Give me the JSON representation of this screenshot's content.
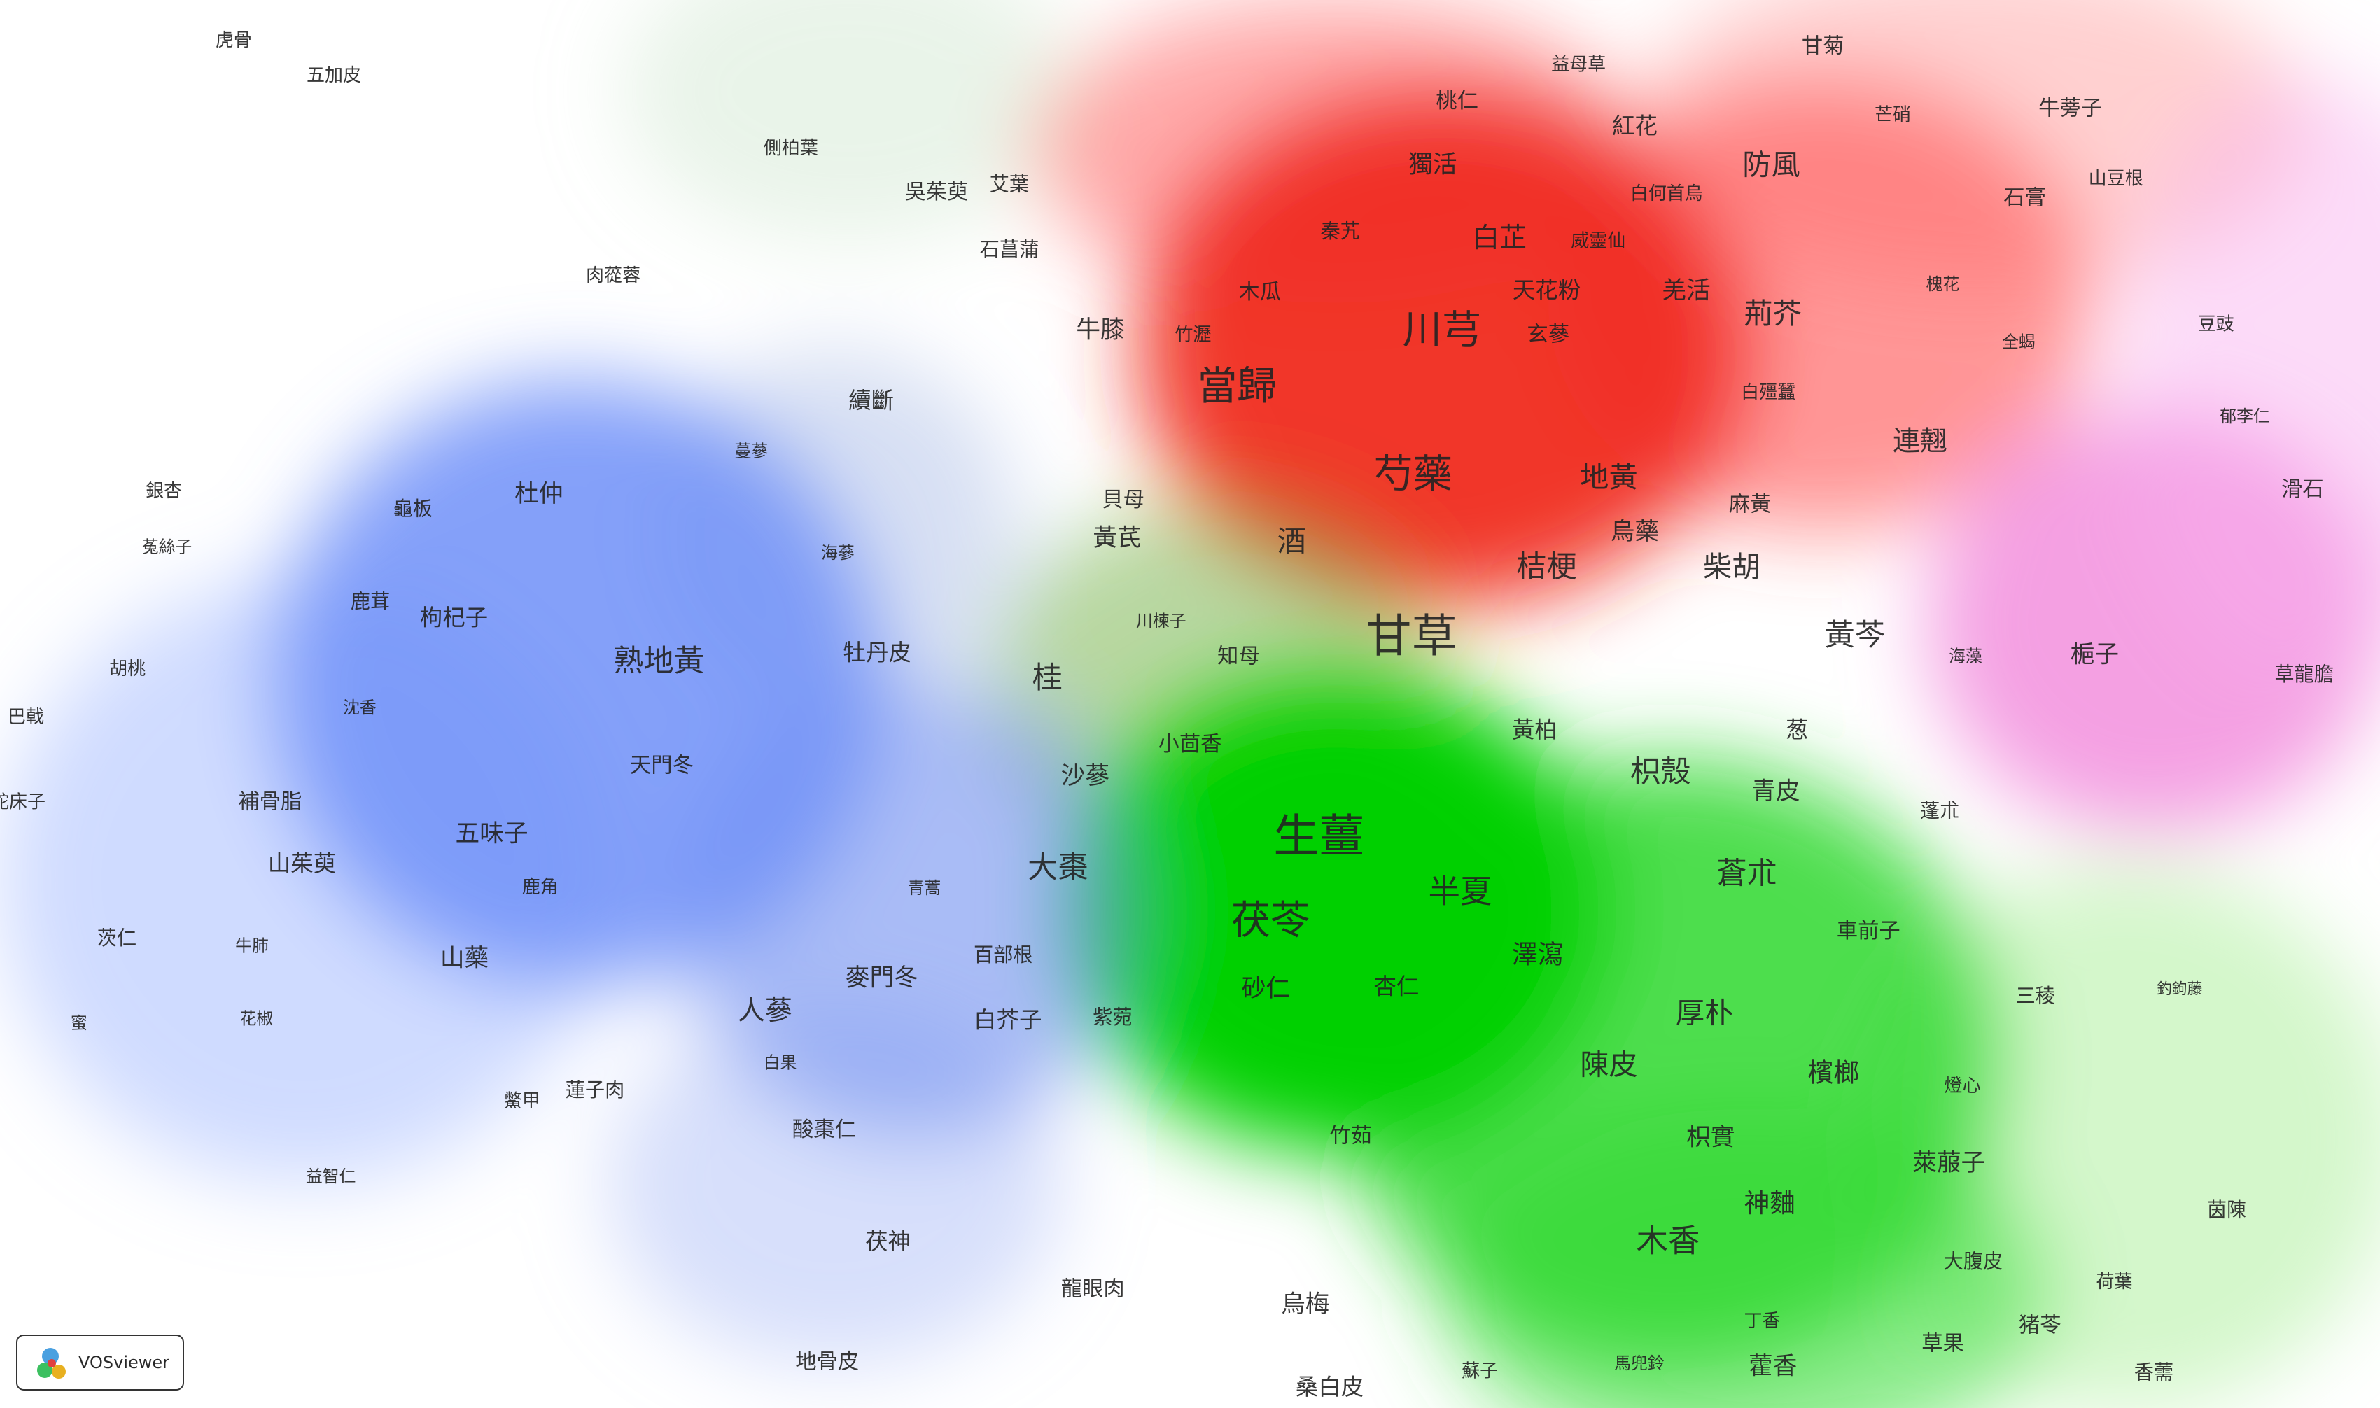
{
  "terms": [
    "虎骨",
    "五加皮",
    "側柏葉",
    "吳茱萸",
    "艾葉",
    "石菖蒲",
    "肉蓯蓉",
    "益母草",
    "甘菊",
    "桃仁",
    "紅花",
    "芒硝",
    "牛蒡子",
    "獨活",
    "白何首烏",
    "防風",
    "山豆根",
    "石膏",
    "秦艽",
    "白芷",
    "威靈仙",
    "木瓜",
    "天花粉",
    "羌活",
    "槐花",
    "牛膝",
    "竹瀝",
    "川芎",
    "玄蔘",
    "荊芥",
    "全蝎",
    "豆豉",
    "續斷",
    "當歸",
    "白殭蠶",
    "連翹",
    "郁李仁",
    "蔓蔘",
    "銀杏",
    "龜板",
    "杜仲",
    "貝母",
    "芍藥",
    "地黃",
    "麻黃",
    "滑石",
    "菟絲子",
    "海蔘",
    "黃芪",
    "酒",
    "烏藥",
    "桔梗",
    "柴胡",
    "鹿茸",
    "枸杞子",
    "川楝子",
    "甘草",
    "黃芩",
    "海藻",
    "梔子",
    "胡桃",
    "熟地黃",
    "牡丹皮",
    "桂",
    "知母",
    "草龍膽",
    "巴戟",
    "沈香",
    "黃柏",
    "葱",
    "枳殼",
    "天門冬",
    "小茴香",
    "沙蔘",
    "青皮",
    "蛇床子",
    "補骨脂",
    "蓬朮",
    "五味子",
    "生薑",
    "山茱萸",
    "鹿角",
    "青蒿",
    "大棗",
    "半夏",
    "蒼朮",
    "車前子",
    "茯苓",
    "澤瀉",
    "百部根",
    "茨仁",
    "牛肺",
    "山藥",
    "麥門冬",
    "砂仁",
    "杏仁",
    "白芥子",
    "紫菀",
    "三稜",
    "釣鉤藤",
    "人蔘",
    "厚朴",
    "蜜",
    "花椒",
    "白果",
    "陳皮",
    "檳榔",
    "燈心",
    "鱉甲",
    "蓮子肉",
    "酸棗仁",
    "竹茹",
    "枳實",
    "萊菔子",
    "益智仁",
    "神麯",
    "茵陳",
    "木香",
    "茯神",
    "大腹皮",
    "荷葉",
    "龍眼肉",
    "烏梅",
    "丁香",
    "猪苓",
    "地骨皮",
    "蘇子",
    "馬兜鈴",
    "藿香",
    "草果",
    "香薷",
    "桑白皮"
  ],
  "logo": {
    "label": "VOSviewer"
  }
}
